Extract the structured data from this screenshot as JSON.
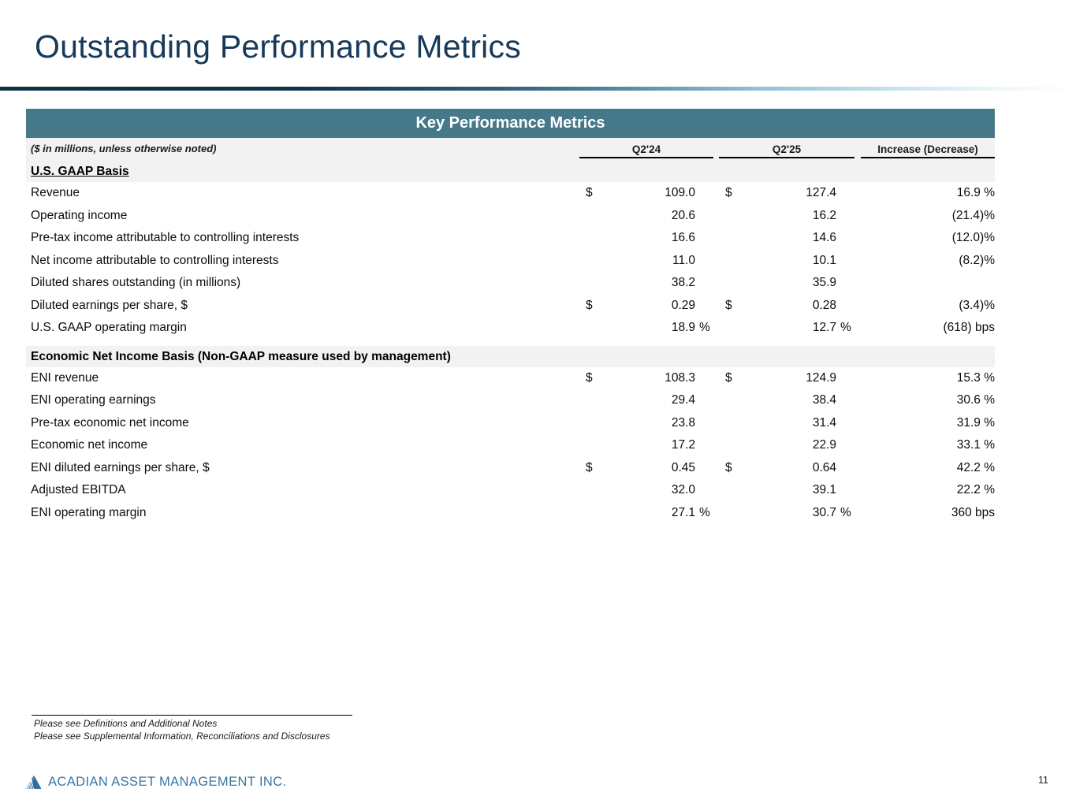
{
  "slide": {
    "title": "Outstanding Performance Metrics",
    "page_number": "11",
    "footer_brand": "ACADIAN ASSET MANAGEMENT INC.",
    "footnotes": [
      "Please see Definitions and Additional Notes",
      "Please see Supplemental Information, Reconciliations and Disclosures"
    ]
  },
  "colors": {
    "title_navy": "#173a5a",
    "table_header_teal": "#45798a",
    "band_gray": "#f2f2f2",
    "brand_blue": "#34789e"
  },
  "table": {
    "title": "Key Performance Metrics",
    "note": "($ in millions, unless otherwise noted)",
    "columns": [
      "Q2'24",
      "Q2'25",
      "Increase (Decrease)"
    ],
    "sections": [
      {
        "header": "U.S. GAAP Basis",
        "rows": [
          {
            "label": "Revenue",
            "c1_cur": "$",
            "c1_val": "109.0",
            "c1_sfx": "",
            "c2_cur": "$",
            "c2_val": "127.4",
            "c2_sfx": "",
            "change": "16.9 %"
          },
          {
            "label": "Operating income",
            "c1_cur": "",
            "c1_val": "20.6",
            "c1_sfx": "",
            "c2_cur": "",
            "c2_val": "16.2",
            "c2_sfx": "",
            "change": "(21.4)%"
          },
          {
            "label": "Pre-tax income attributable to controlling interests",
            "c1_cur": "",
            "c1_val": "16.6",
            "c1_sfx": "",
            "c2_cur": "",
            "c2_val": "14.6",
            "c2_sfx": "",
            "change": "(12.0)%"
          },
          {
            "label": "Net income attributable to controlling interests",
            "c1_cur": "",
            "c1_val": "11.0",
            "c1_sfx": "",
            "c2_cur": "",
            "c2_val": "10.1",
            "c2_sfx": "",
            "change": "(8.2)%"
          },
          {
            "label": "Diluted shares outstanding (in millions)",
            "c1_cur": "",
            "c1_val": "38.2",
            "c1_sfx": "",
            "c2_cur": "",
            "c2_val": "35.9",
            "c2_sfx": "",
            "change": ""
          },
          {
            "label": "Diluted earnings per share, $",
            "c1_cur": "$",
            "c1_val": "0.29",
            "c1_sfx": "",
            "c2_cur": "$",
            "c2_val": "0.28",
            "c2_sfx": "",
            "change": "(3.4)%"
          },
          {
            "label": "U.S. GAAP operating margin",
            "c1_cur": "",
            "c1_val": "18.9",
            "c1_sfx": "%",
            "c2_cur": "",
            "c2_val": "12.7",
            "c2_sfx": "%",
            "change": "(618) bps"
          }
        ]
      },
      {
        "header": "Economic Net Income Basis (Non-GAAP measure used by management)",
        "rows": [
          {
            "label": "ENI revenue",
            "c1_cur": "$",
            "c1_val": "108.3",
            "c1_sfx": "",
            "c2_cur": "$",
            "c2_val": "124.9",
            "c2_sfx": "",
            "change": "15.3 %"
          },
          {
            "label": "ENI operating earnings",
            "c1_cur": "",
            "c1_val": "29.4",
            "c1_sfx": "",
            "c2_cur": "",
            "c2_val": "38.4",
            "c2_sfx": "",
            "change": "30.6 %"
          },
          {
            "label": "Pre-tax economic net income",
            "c1_cur": "",
            "c1_val": "23.8",
            "c1_sfx": "",
            "c2_cur": "",
            "c2_val": "31.4",
            "c2_sfx": "",
            "change": "31.9 %"
          },
          {
            "label": "Economic net income",
            "c1_cur": "",
            "c1_val": "17.2",
            "c1_sfx": "",
            "c2_cur": "",
            "c2_val": "22.9",
            "c2_sfx": "",
            "change": "33.1 %"
          },
          {
            "label": "ENI diluted earnings per share, $",
            "c1_cur": "$",
            "c1_val": "0.45",
            "c1_sfx": "",
            "c2_cur": "$",
            "c2_val": "0.64",
            "c2_sfx": "",
            "change": "42.2 %"
          },
          {
            "label": "Adjusted EBITDA",
            "c1_cur": "",
            "c1_val": "32.0",
            "c1_sfx": "",
            "c2_cur": "",
            "c2_val": "39.1",
            "c2_sfx": "",
            "change": "22.2 %"
          },
          {
            "label": "ENI operating margin",
            "c1_cur": "",
            "c1_val": "27.1",
            "c1_sfx": "%",
            "c2_cur": "",
            "c2_val": "30.7",
            "c2_sfx": "%",
            "change": "360 bps"
          }
        ]
      }
    ]
  }
}
